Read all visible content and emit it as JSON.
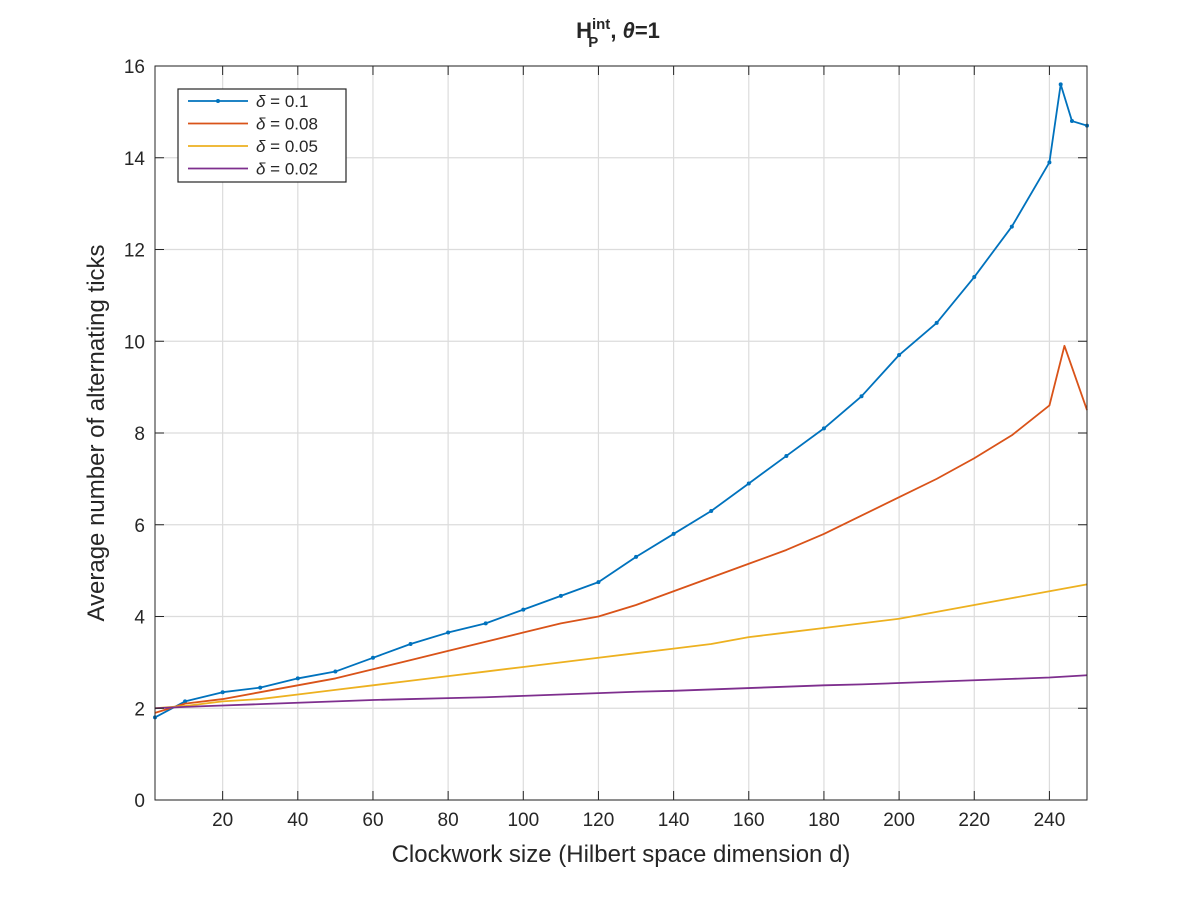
{
  "chart_data": {
    "type": "line",
    "title_main": "H",
    "title_sup": "int",
    "title_sub": "P",
    "title_theta": "θ",
    "title_rest": "=1",
    "title_sep": ", ",
    "xlabel": "Clockwork size (Hilbert space dimension d)",
    "ylabel": "Average number of alternating ticks",
    "xlim": [
      2,
      250
    ],
    "ylim": [
      0,
      16
    ],
    "xticks": [
      20,
      40,
      60,
      80,
      100,
      120,
      140,
      160,
      180,
      200,
      220,
      240
    ],
    "yticks": [
      0,
      2,
      4,
      6,
      8,
      10,
      12,
      14,
      16
    ],
    "xtick_labels": [
      "20",
      "40",
      "60",
      "80",
      "100",
      "120",
      "140",
      "160",
      "180",
      "200",
      "220",
      "240"
    ],
    "ytick_labels": [
      "0",
      "2",
      "4",
      "6",
      "8",
      "10",
      "12",
      "14",
      "16"
    ],
    "grid": true,
    "legend_position": "top-left",
    "series": [
      {
        "name": "δ = 0.1",
        "legend_symbol": "δ",
        "legend_value": " = 0.1",
        "color": "#0072BD",
        "markers": true,
        "points": [
          [
            2,
            1.8
          ],
          [
            10,
            2.15
          ],
          [
            20,
            2.35
          ],
          [
            30,
            2.45
          ],
          [
            40,
            2.65
          ],
          [
            50,
            2.8
          ],
          [
            60,
            3.1
          ],
          [
            70,
            3.4
          ],
          [
            80,
            3.65
          ],
          [
            90,
            3.85
          ],
          [
            100,
            4.15
          ],
          [
            110,
            4.45
          ],
          [
            120,
            4.75
          ],
          [
            130,
            5.3
          ],
          [
            140,
            5.8
          ],
          [
            150,
            6.3
          ],
          [
            160,
            6.9
          ],
          [
            170,
            7.5
          ],
          [
            180,
            8.1
          ],
          [
            190,
            8.8
          ],
          [
            200,
            9.7
          ],
          [
            210,
            10.4
          ],
          [
            220,
            11.4
          ],
          [
            230,
            12.5
          ],
          [
            240,
            13.9
          ],
          [
            243,
            15.6
          ],
          [
            246,
            14.8
          ],
          [
            250,
            14.7
          ]
        ]
      },
      {
        "name": "δ = 0.08",
        "legend_symbol": "δ",
        "legend_value": " = 0.08",
        "color": "#D95319",
        "markers": false,
        "points": [
          [
            2,
            1.9
          ],
          [
            10,
            2.1
          ],
          [
            20,
            2.2
          ],
          [
            30,
            2.35
          ],
          [
            40,
            2.5
          ],
          [
            50,
            2.65
          ],
          [
            60,
            2.85
          ],
          [
            70,
            3.05
          ],
          [
            80,
            3.25
          ],
          [
            90,
            3.45
          ],
          [
            100,
            3.65
          ],
          [
            110,
            3.85
          ],
          [
            120,
            4.0
          ],
          [
            130,
            4.25
          ],
          [
            140,
            4.55
          ],
          [
            150,
            4.85
          ],
          [
            160,
            5.15
          ],
          [
            170,
            5.45
          ],
          [
            180,
            5.8
          ],
          [
            190,
            6.2
          ],
          [
            200,
            6.6
          ],
          [
            210,
            7.0
          ],
          [
            220,
            7.45
          ],
          [
            230,
            7.95
          ],
          [
            240,
            8.6
          ],
          [
            244,
            9.9
          ],
          [
            247,
            9.2
          ],
          [
            250,
            8.5
          ]
        ]
      },
      {
        "name": "δ = 0.05",
        "legend_symbol": "δ",
        "legend_value": " = 0.05",
        "color": "#EDB120",
        "markers": false,
        "points": [
          [
            2,
            2.0
          ],
          [
            10,
            2.05
          ],
          [
            20,
            2.15
          ],
          [
            30,
            2.2
          ],
          [
            40,
            2.3
          ],
          [
            50,
            2.4
          ],
          [
            60,
            2.5
          ],
          [
            70,
            2.6
          ],
          [
            80,
            2.7
          ],
          [
            90,
            2.8
          ],
          [
            100,
            2.9
          ],
          [
            110,
            3.0
          ],
          [
            120,
            3.1
          ],
          [
            130,
            3.2
          ],
          [
            140,
            3.3
          ],
          [
            150,
            3.4
          ],
          [
            160,
            3.55
          ],
          [
            170,
            3.65
          ],
          [
            180,
            3.75
          ],
          [
            190,
            3.85
          ],
          [
            200,
            3.95
          ],
          [
            210,
            4.1
          ],
          [
            220,
            4.25
          ],
          [
            230,
            4.4
          ],
          [
            240,
            4.55
          ],
          [
            250,
            4.7
          ]
        ]
      },
      {
        "name": "δ = 0.02",
        "legend_symbol": "δ",
        "legend_value": " = 0.02",
        "color": "#7E2F8E",
        "markers": false,
        "points": [
          [
            2,
            2.0
          ],
          [
            10,
            2.03
          ],
          [
            20,
            2.06
          ],
          [
            30,
            2.09
          ],
          [
            40,
            2.12
          ],
          [
            50,
            2.15
          ],
          [
            60,
            2.18
          ],
          [
            70,
            2.2
          ],
          [
            80,
            2.22
          ],
          [
            90,
            2.24
          ],
          [
            100,
            2.27
          ],
          [
            110,
            2.3
          ],
          [
            120,
            2.33
          ],
          [
            130,
            2.36
          ],
          [
            140,
            2.38
          ],
          [
            150,
            2.41
          ],
          [
            160,
            2.44
          ],
          [
            170,
            2.47
          ],
          [
            180,
            2.5
          ],
          [
            190,
            2.52
          ],
          [
            200,
            2.55
          ],
          [
            210,
            2.58
          ],
          [
            220,
            2.61
          ],
          [
            230,
            2.64
          ],
          [
            240,
            2.67
          ],
          [
            250,
            2.72
          ]
        ]
      }
    ]
  }
}
